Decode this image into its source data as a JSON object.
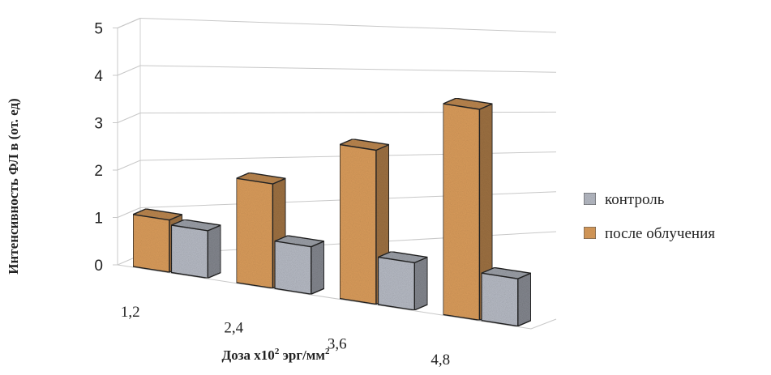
{
  "chart_data": {
    "type": "bar",
    "categories": [
      "1,2",
      "2,4",
      "3,6",
      "4,8"
    ],
    "series": [
      {
        "name": "контроль",
        "values": [
          1.0,
          1.0,
          1.0,
          1.0
        ],
        "color": "#b8bcc6"
      },
      {
        "name": "после облучения",
        "values": [
          1.1,
          2.2,
          3.25,
          4.45
        ],
        "color": "#d79a5a"
      }
    ],
    "xlabel": "Доза х10² эрг/мм²",
    "xlabel_main": "Доза х10",
    "xlabel_sup1": "2",
    "xlabel_unit": " эрг/мм",
    "xlabel_sup2": "2",
    "ylabel": "Интенсивность ФЛ в (от. ед)",
    "ylim": [
      0,
      5
    ],
    "yticks": [
      "0",
      "1",
      "2",
      "3",
      "4",
      "5"
    ],
    "grid": true,
    "legend_position": "right",
    "style": "3d-clustered-column"
  }
}
